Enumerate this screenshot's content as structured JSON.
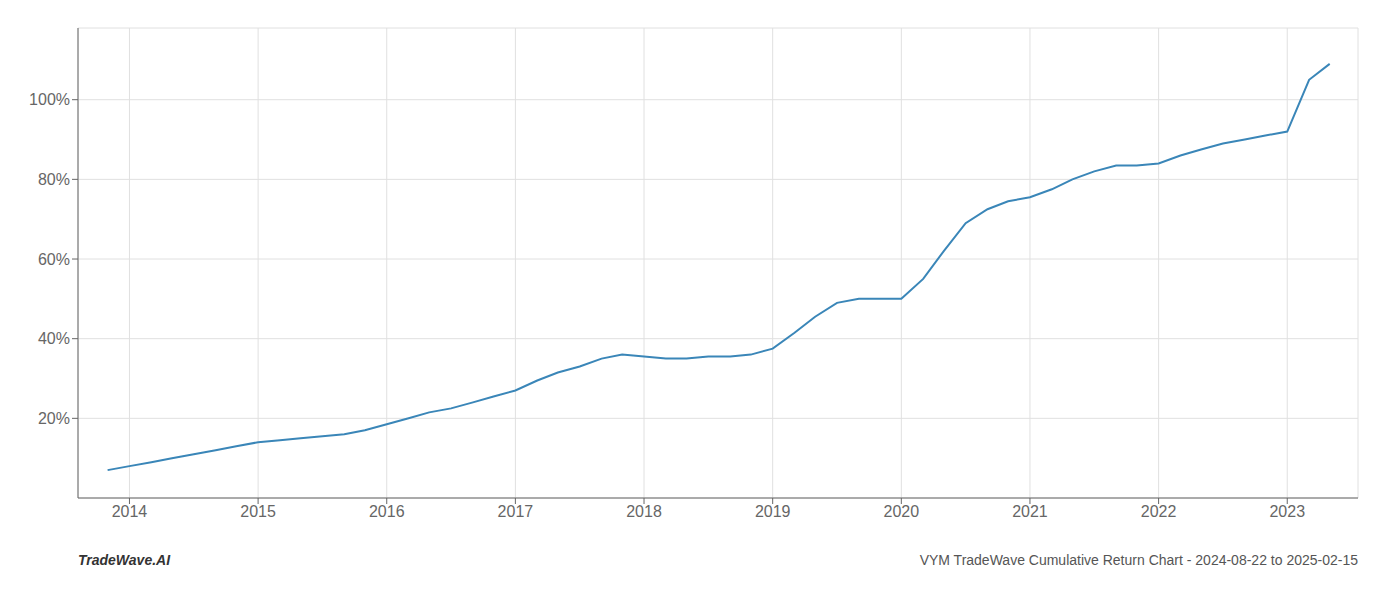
{
  "chart_data": {
    "type": "line",
    "title": "VYM TradeWave Cumulative Return Chart - 2024-08-22 to 2025-02-15",
    "annotations": [
      "TradeWave.AI"
    ],
    "x": [
      2013.83,
      2014.0,
      2014.17,
      2014.33,
      2014.5,
      2014.67,
      2014.83,
      2015.0,
      2015.17,
      2015.33,
      2015.5,
      2015.67,
      2015.83,
      2016.0,
      2016.17,
      2016.33,
      2016.5,
      2016.67,
      2016.83,
      2017.0,
      2017.17,
      2017.33,
      2017.5,
      2017.67,
      2017.83,
      2018.0,
      2018.17,
      2018.33,
      2018.5,
      2018.67,
      2018.83,
      2019.0,
      2019.17,
      2019.33,
      2019.5,
      2019.67,
      2019.83,
      2020.0,
      2020.17,
      2020.33,
      2020.5,
      2020.67,
      2020.83,
      2021.0,
      2021.17,
      2021.33,
      2021.5,
      2021.67,
      2021.83,
      2022.0,
      2022.17,
      2022.33,
      2022.5,
      2022.67,
      2022.83,
      2023.0,
      2023.17,
      2023.33
    ],
    "values": [
      0.07,
      0.08,
      0.09,
      0.1,
      0.11,
      0.12,
      0.13,
      0.14,
      0.145,
      0.15,
      0.155,
      0.16,
      0.17,
      0.185,
      0.2,
      0.215,
      0.225,
      0.24,
      0.255,
      0.27,
      0.295,
      0.315,
      0.33,
      0.35,
      0.36,
      0.355,
      0.35,
      0.35,
      0.355,
      0.355,
      0.36,
      0.375,
      0.415,
      0.455,
      0.49,
      0.5,
      0.5,
      0.5,
      0.55,
      0.62,
      0.69,
      0.725,
      0.745,
      0.755,
      0.775,
      0.8,
      0.82,
      0.835,
      0.835,
      0.84,
      0.86,
      0.875,
      0.89,
      0.9,
      0.91,
      0.92,
      1.05,
      1.09
    ],
    "color": "#3a86b8",
    "xlim": [
      2013.6,
      2023.55
    ],
    "ylim": [
      0.0,
      1.18
    ],
    "xticks": [
      2014,
      2015,
      2016,
      2017,
      2018,
      2019,
      2020,
      2021,
      2022,
      2023
    ],
    "yticks": [
      {
        "value": 0.2,
        "label": "20%"
      },
      {
        "value": 0.4,
        "label": "40%"
      },
      {
        "value": 0.6,
        "label": "60%"
      },
      {
        "value": 0.8,
        "label": "80%"
      },
      {
        "value": 1.0,
        "label": "100%"
      }
    ],
    "grid": true
  }
}
